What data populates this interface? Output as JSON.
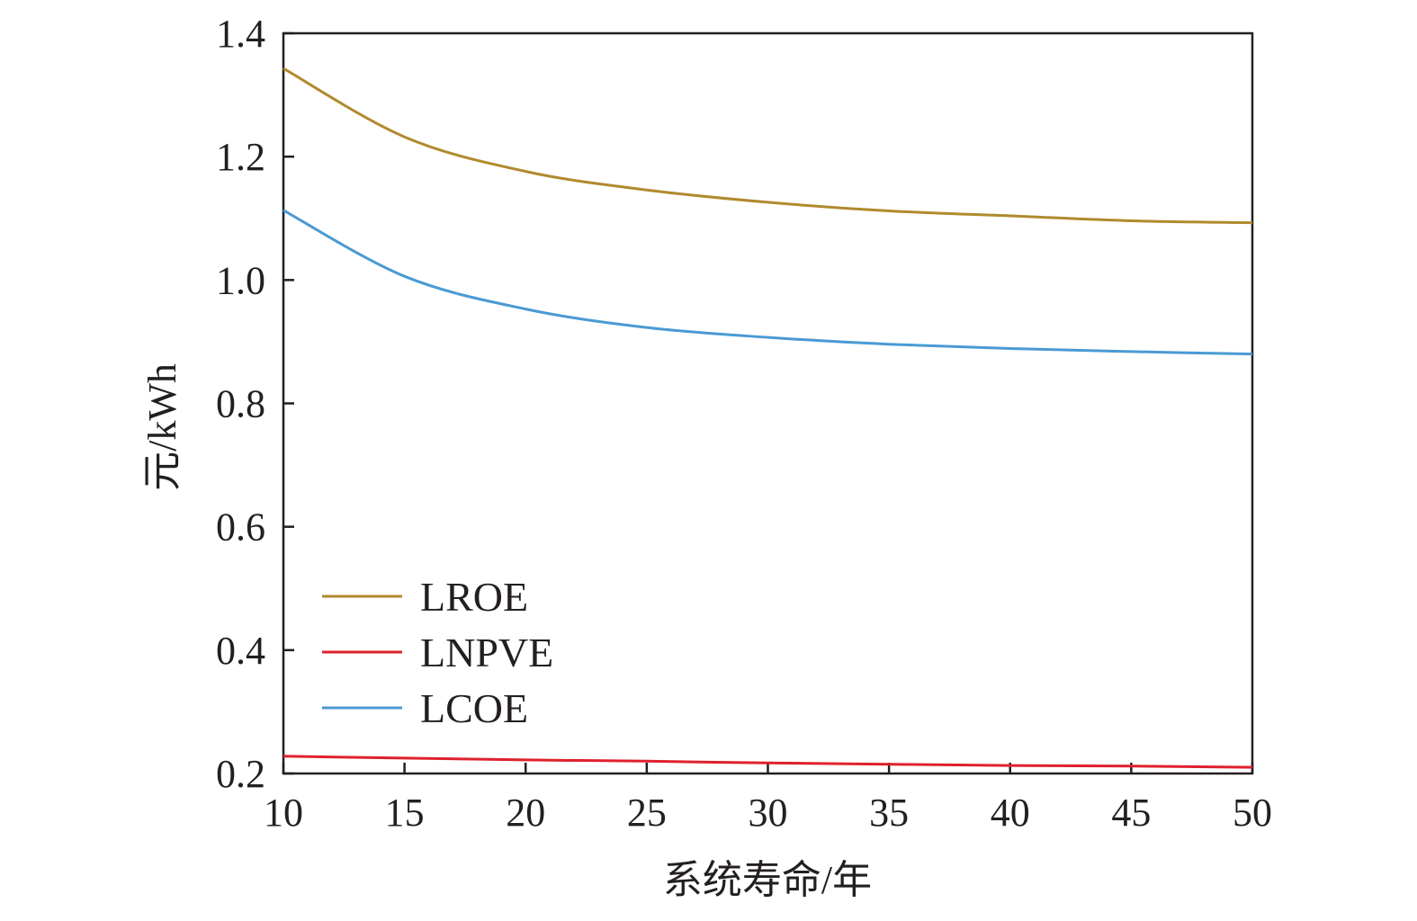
{
  "chart_data": {
    "type": "line",
    "xlabel": "系统寿命/年",
    "ylabel": "元/kWh",
    "xlim": [
      10,
      50
    ],
    "ylim": [
      0.2,
      1.4
    ],
    "xticks": [
      10,
      15,
      20,
      25,
      30,
      35,
      40,
      45,
      50
    ],
    "yticks": [
      0.2,
      0.4,
      0.6,
      0.8,
      1.0,
      1.2,
      1.4
    ],
    "ytick_labels": [
      "0.2",
      "0.4",
      "0.6",
      "0.8",
      "1.0",
      "1.2",
      "1.4"
    ],
    "grid": false,
    "legend_position": "bottom-left",
    "x": [
      10,
      15,
      20,
      25,
      30,
      35,
      40,
      45,
      50
    ],
    "series": [
      {
        "name": "LROE",
        "color": "#b08a2e",
        "values": [
          1.343,
          1.232,
          1.176,
          1.146,
          1.126,
          1.112,
          1.104,
          1.096,
          1.093
        ]
      },
      {
        "name": "LNPVE",
        "color": "#e0202e",
        "values": [
          0.228,
          0.225,
          0.222,
          0.22,
          0.217,
          0.215,
          0.213,
          0.212,
          0.21
        ]
      },
      {
        "name": "LCOE",
        "color": "#4a9ad4",
        "values": [
          1.113,
          1.006,
          0.953,
          0.923,
          0.907,
          0.896,
          0.889,
          0.884,
          0.88
        ]
      }
    ]
  }
}
